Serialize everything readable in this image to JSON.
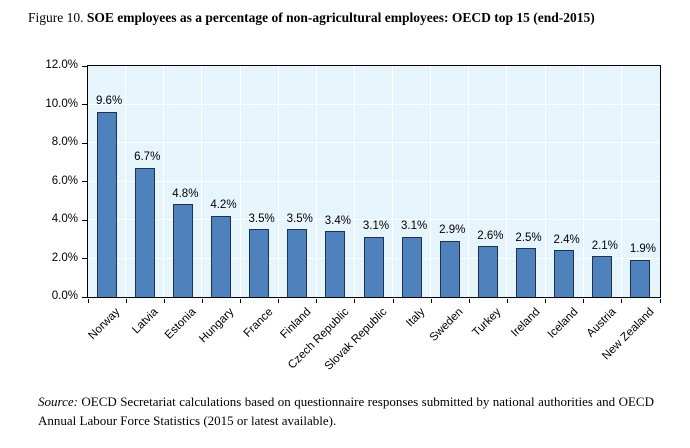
{
  "figure": {
    "label": "Figure 10.",
    "title": "SOE employees as a percentage of non-agricultural employees: OECD top 15 (end-2015)"
  },
  "source": {
    "prefix": "Source:",
    "text": " OECD Secretariat calculations based on questionnaire responses submitted by national authorities and OECD Annual Labour Force Statistics (2015 or latest available)."
  },
  "chart_data": {
    "type": "bar",
    "title": "SOE employees as a percentage of non-agricultural employees: OECD top 15 (end-2015)",
    "categories": [
      "Norway",
      "Latvia",
      "Estonia",
      "Hungary",
      "France",
      "Finland",
      "Czech Republic",
      "Slovak Republic",
      "Italy",
      "Sweden",
      "Turkey",
      "Ireland",
      "Iceland",
      "Austria",
      "New Zealand"
    ],
    "values": [
      9.6,
      6.7,
      4.8,
      4.2,
      3.5,
      3.5,
      3.4,
      3.1,
      3.1,
      2.9,
      2.6,
      2.5,
      2.4,
      2.1,
      1.9
    ],
    "data_labels": [
      "9.6%",
      "6.7%",
      "4.8%",
      "4.2%",
      "3.5%",
      "3.5%",
      "3.4%",
      "3.1%",
      "3.1%",
      "2.9%",
      "2.6%",
      "2.5%",
      "2.4%",
      "2.1%",
      "1.9%"
    ],
    "xlabel": "",
    "ylabel": "",
    "ylim": [
      0,
      12
    ],
    "ytick_step": 2,
    "ytick_labels": [
      "0.0%",
      "2.0%",
      "4.0%",
      "6.0%",
      "8.0%",
      "10.0%",
      "12.0%"
    ],
    "grid": "both",
    "legend": "none",
    "colors": {
      "bar_fill": "#4f81bd",
      "bar_border": "#1f3050",
      "plot_bg": "#e6f5fb",
      "gridline": "#ffffff",
      "axis": "#000000"
    }
  }
}
